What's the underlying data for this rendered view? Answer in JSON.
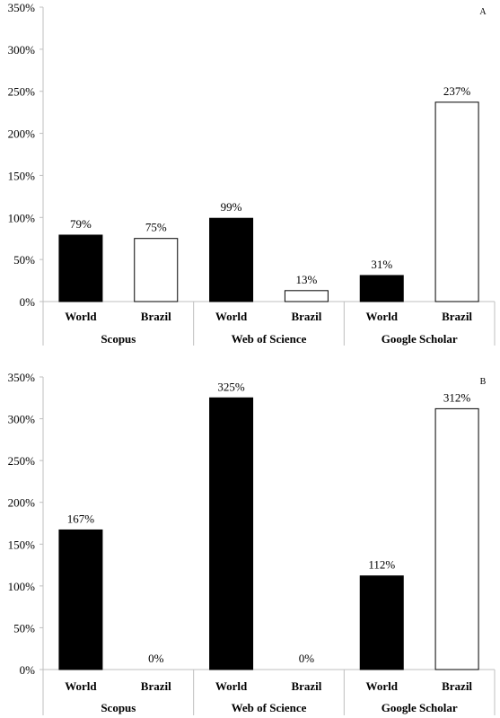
{
  "chart_data": [
    {
      "type": "bar",
      "panel_label": "A",
      "groups": [
        "Scopus",
        "Web of Science",
        "Google Scholar"
      ],
      "categories": [
        "World",
        "Brazil",
        "World",
        "Brazil",
        "World",
        "Brazil"
      ],
      "values": [
        79,
        75,
        99,
        13,
        31,
        237
      ],
      "value_labels": [
        "79%",
        "75%",
        "99%",
        "13%",
        "31%",
        "237%"
      ],
      "fills": [
        "#000000",
        "#ffffff",
        "#000000",
        "#ffffff",
        "#000000",
        "#ffffff"
      ],
      "ylim": [
        0,
        350
      ],
      "yticks": [
        "0%",
        "50%",
        "100%",
        "150%",
        "200%",
        "250%",
        "300%",
        "350%"
      ],
      "grid": false
    },
    {
      "type": "bar",
      "panel_label": "B",
      "groups": [
        "Scopus",
        "Web of Science",
        "Google Scholar"
      ],
      "categories": [
        "World",
        "Brazil",
        "World",
        "Brazil",
        "World",
        "Brazil"
      ],
      "values": [
        167,
        0,
        325,
        0,
        112,
        312
      ],
      "value_labels": [
        "167%",
        "0%",
        "325%",
        "0%",
        "112%",
        "312%"
      ],
      "fills": [
        "#000000",
        "#ffffff",
        "#000000",
        "#ffffff",
        "#000000",
        "#ffffff"
      ],
      "ylim": [
        0,
        350
      ],
      "yticks": [
        "0%",
        "50%",
        "100%",
        "150%",
        "200%",
        "250%",
        "300%",
        "350%"
      ],
      "grid": false
    }
  ]
}
